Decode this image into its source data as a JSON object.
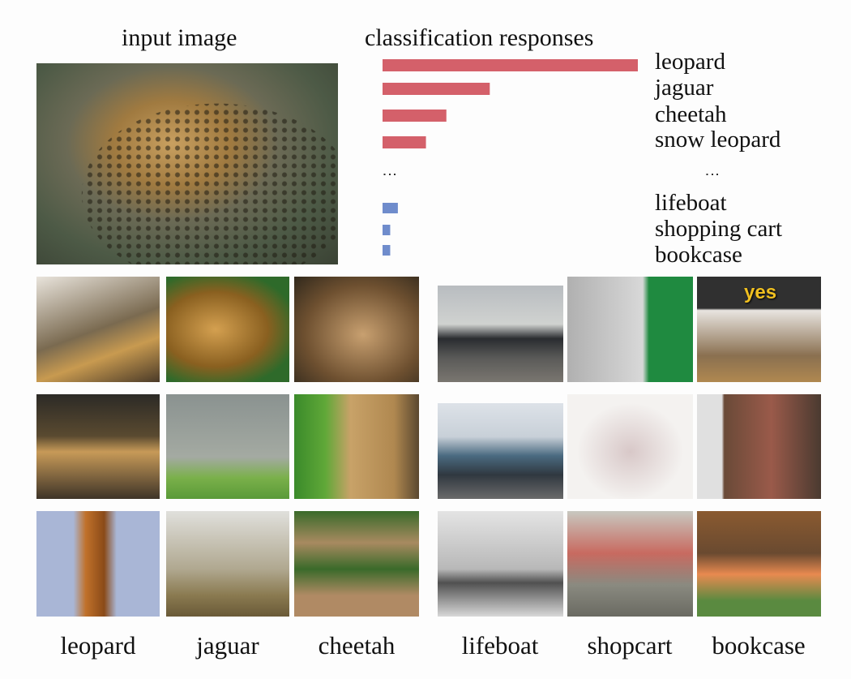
{
  "headings": {
    "input": "input image",
    "responses": "classification responses"
  },
  "chart_data": {
    "type": "bar",
    "orientation": "horizontal",
    "categories": [
      "leopard",
      "jaguar",
      "cheetah",
      "snow leopard",
      "lifeboat",
      "shopping cart",
      "bookcase"
    ],
    "values": [
      1.0,
      0.42,
      0.25,
      0.17,
      0.06,
      0.03,
      0.03
    ],
    "colors": [
      "#d4606a",
      "#d4606a",
      "#d4606a",
      "#d4606a",
      "#6f8ccc",
      "#6f8ccc",
      "#6f8ccc"
    ],
    "ellipsis": "⋮"
  },
  "overlay_text": "yes",
  "captions": [
    "leopard",
    "jaguar",
    "cheetah",
    "lifeboat",
    "shopcart",
    "bookcase"
  ]
}
